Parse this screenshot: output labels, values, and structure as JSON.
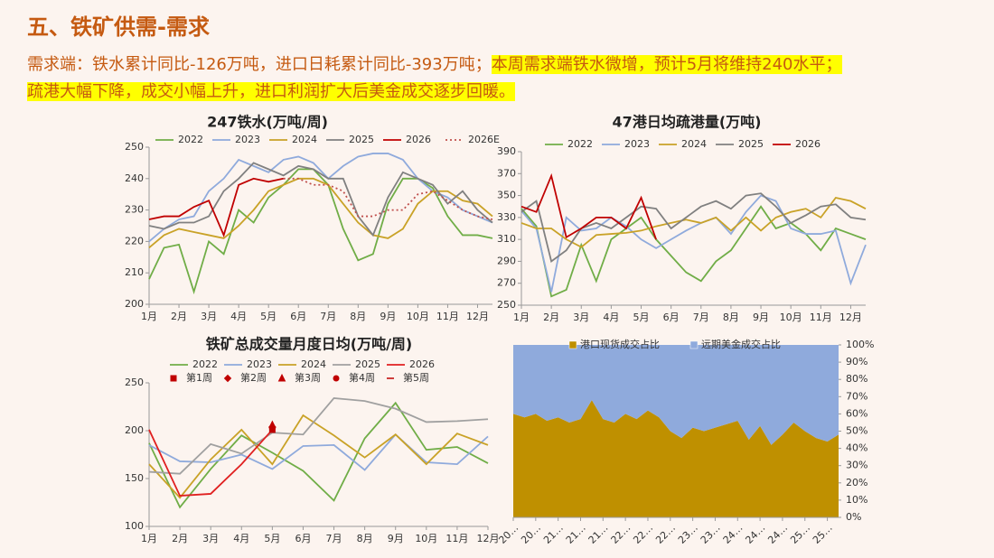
{
  "header": {
    "title": "五、铁矿供需-需求"
  },
  "description": [
    {
      "text": "需求端：铁水累计同比-126万吨，进口日耗累计同比-393万吨；",
      "highlight": false
    },
    {
      "text": "本周需求端铁水微增，预计5月将维持240水平；",
      "highlight": true
    },
    {
      "text": "疏港大幅下降，成交小幅上升，进口利润扩大后美金成交逐步回暖。",
      "highlight": true
    }
  ],
  "charts": [
    {
      "type": "line",
      "title": "247铁水(万吨/周)",
      "categories": [
        "1月",
        null,
        "2月",
        null,
        "3月",
        null,
        "4月",
        null,
        "5月",
        null,
        "6月",
        null,
        "7月",
        null,
        "8月",
        null,
        "9月",
        null,
        "10月",
        null,
        "11月",
        null,
        "12月",
        null
      ],
      "ylim": [
        200,
        250
      ],
      "yticks": [
        200,
        210,
        220,
        230,
        240,
        250
      ],
      "series": [
        {
          "name": "2022",
          "color": "#70ad47",
          "values": [
            208,
            218,
            219,
            204,
            220,
            216,
            230,
            226,
            234,
            238,
            243,
            243,
            238,
            224,
            214,
            216,
            232,
            240,
            240,
            237,
            228,
            222,
            222,
            221
          ]
        },
        {
          "name": "2023",
          "color": "#8faadc",
          "values": [
            220,
            224,
            227,
            228,
            236,
            240,
            246,
            244,
            242,
            246,
            247,
            245,
            240,
            244,
            247,
            248,
            248,
            246,
            240,
            236,
            234,
            230,
            228,
            226
          ]
        },
        {
          "name": "2024",
          "color": "#c9a227",
          "values": [
            218,
            222,
            224,
            223,
            222,
            221,
            225,
            230,
            236,
            238,
            240,
            240,
            238,
            232,
            226,
            222,
            221,
            224,
            232,
            236,
            236,
            233,
            232,
            228
          ]
        },
        {
          "name": "2025",
          "color": "#808080",
          "values": [
            225,
            224,
            226,
            226,
            228,
            236,
            240,
            245,
            243,
            241,
            244,
            243,
            240,
            240,
            228,
            222,
            234,
            242,
            240,
            238,
            232,
            236,
            230,
            226
          ]
        },
        {
          "name": "2026",
          "color": "#c00000",
          "values": [
            227,
            228,
            228,
            231,
            233,
            222,
            238,
            240,
            239,
            240,
            null,
            null,
            null,
            null,
            null,
            null,
            null,
            null,
            null,
            null,
            null,
            null,
            null,
            null
          ]
        },
        {
          "name": "2026E",
          "color": "#c0504d",
          "line_style": "dotted",
          "values": [
            null,
            null,
            null,
            null,
            null,
            null,
            null,
            null,
            null,
            240,
            240,
            238,
            238,
            236,
            228,
            228,
            230,
            230,
            235,
            236,
            233,
            230,
            228,
            227
          ]
        }
      ]
    },
    {
      "type": "line",
      "title": "47港日均疏港量(万吨)",
      "categories": [
        "1月",
        null,
        "2月",
        null,
        "3月",
        null,
        "4月",
        null,
        "5月",
        null,
        "6月",
        null,
        "7月",
        null,
        "8月",
        null,
        "9月",
        null,
        "10月",
        null,
        "11月",
        null,
        "12月",
        null
      ],
      "ylim": [
        250,
        390
      ],
      "yticks": [
        250,
        270,
        290,
        310,
        330,
        350,
        370,
        390
      ],
      "series": [
        {
          "name": "2022",
          "color": "#70ad47",
          "values": [
            338,
            322,
            258,
            264,
            305,
            272,
            310,
            320,
            330,
            310,
            295,
            280,
            272,
            290,
            300,
            320,
            340,
            320,
            325,
            315,
            300,
            320,
            315,
            310
          ]
        },
        {
          "name": "2023",
          "color": "#8faadc",
          "values": [
            336,
            320,
            262,
            330,
            318,
            320,
            330,
            322,
            310,
            302,
            310,
            318,
            325,
            330,
            315,
            335,
            350,
            345,
            320,
            315,
            315,
            318,
            270,
            305
          ]
        },
        {
          "name": "2024",
          "color": "#c9a227",
          "values": [
            325,
            320,
            320,
            310,
            303,
            314,
            315,
            316,
            318,
            322,
            325,
            328,
            325,
            330,
            318,
            330,
            318,
            330,
            335,
            338,
            330,
            348,
            345,
            338
          ]
        },
        {
          "name": "2025",
          "color": "#808080",
          "values": [
            335,
            345,
            290,
            300,
            320,
            325,
            320,
            330,
            340,
            338,
            320,
            330,
            340,
            345,
            338,
            350,
            352,
            340,
            325,
            332,
            340,
            342,
            330,
            328
          ]
        },
        {
          "name": "2026",
          "color": "#c00000",
          "values": [
            340,
            335,
            368,
            312,
            320,
            330,
            330,
            320,
            348,
            310,
            null,
            null,
            null,
            null,
            null,
            null,
            null,
            null,
            null,
            null,
            null,
            null,
            null,
            null
          ]
        }
      ]
    },
    {
      "type": "line",
      "title": "铁矿总成交量月度日均(万吨/周)",
      "categories": [
        "1月",
        "2月",
        "3月",
        "4月",
        "5月",
        "6月",
        "7月",
        "8月",
        "9月",
        "10月",
        "11月",
        "12月"
      ],
      "ylim": [
        100,
        250
      ],
      "yticks": [
        100,
        150,
        200,
        250
      ],
      "series": [
        {
          "name": "2022",
          "color": "#70ad47",
          "values": [
            187,
            120,
            160,
            195,
            177,
            158,
            127,
            192,
            229,
            180,
            183,
            166
          ]
        },
        {
          "name": "2023",
          "color": "#8faadc",
          "values": [
            185,
            168,
            167,
            175,
            160,
            184,
            185,
            159,
            196,
            167,
            165,
            194
          ]
        },
        {
          "name": "2024",
          "color": "#c9a227",
          "values": [
            165,
            130,
            170,
            201,
            165,
            216,
            195,
            172,
            196,
            165,
            197,
            185
          ]
        },
        {
          "name": "2025",
          "color": "#a0a0a0",
          "values": [
            157,
            155,
            186,
            176,
            198,
            196,
            234,
            231,
            223,
            209,
            210,
            212
          ]
        },
        {
          "name": "2026",
          "color": "#e02020",
          "values": [
            201,
            132,
            134,
            165,
            201,
            null,
            null,
            null,
            null,
            null,
            null,
            null
          ]
        }
      ],
      "markers": [
        {
          "name": "第1周",
          "marker": "square",
          "color": "#c00000",
          "values": [
            null,
            null,
            null,
            null,
            201,
            null,
            null,
            null,
            null,
            null,
            null,
            null
          ]
        },
        {
          "name": "第2周",
          "marker": "diamond",
          "color": "#c00000",
          "values": [
            null,
            null,
            null,
            null,
            204,
            null,
            null,
            null,
            null,
            null,
            null,
            null
          ]
        },
        {
          "name": "第3周",
          "marker": "triangle",
          "color": "#c00000",
          "values": [
            null,
            null,
            null,
            null,
            206,
            null,
            null,
            null,
            null,
            null,
            null,
            null
          ]
        },
        {
          "name": "第4周",
          "marker": "circle",
          "color": "#c00000",
          "values": [
            null,
            null,
            null,
            null,
            202,
            null,
            null,
            null,
            null,
            null,
            null,
            null
          ]
        },
        {
          "name": "第5周",
          "marker": "dash",
          "color": "#c00000",
          "values": [
            null,
            null,
            null,
            null,
            null,
            null,
            null,
            null,
            null,
            null,
            null,
            null
          ]
        }
      ]
    },
    {
      "type": "stacked_area",
      "categories": [
        "20…",
        null,
        "20…",
        null,
        "21…",
        null,
        "21…",
        null,
        "21…",
        null,
        "22…",
        null,
        "22…",
        null,
        "22…",
        null,
        "23…",
        null,
        "23…",
        null,
        "24…",
        null,
        "24…",
        null,
        "24…",
        null,
        "25…",
        null,
        "25…",
        null
      ],
      "ylim": [
        0,
        100
      ],
      "yticks": [
        {
          "value": 0,
          "label": "0%"
        },
        {
          "value": 10,
          "label": "10%"
        },
        {
          "value": 20,
          "label": "20%"
        },
        {
          "value": 30,
          "label": "30%"
        },
        {
          "value": 40,
          "label": "40%"
        },
        {
          "value": 50,
          "label": "50%"
        },
        {
          "value": 60,
          "label": "60%"
        },
        {
          "value": 70,
          "label": "70%"
        },
        {
          "value": 80,
          "label": "80%"
        },
        {
          "value": 90,
          "label": "90%"
        },
        {
          "value": 100,
          "label": "100%"
        }
      ],
      "series": [
        {
          "name": "港口现货成交占比",
          "color": "#bf9000",
          "values": [
            60,
            58,
            60,
            56,
            58,
            55,
            57,
            68,
            57,
            55,
            60,
            57,
            62,
            58,
            50,
            46,
            52,
            50,
            52,
            54,
            56,
            45,
            53,
            42,
            48,
            55,
            50,
            46,
            44,
            48
          ]
        },
        {
          "name": "远期美金成交占比",
          "color": "#8faadc",
          "values": [
            40,
            42,
            40,
            44,
            42,
            45,
            43,
            32,
            43,
            45,
            40,
            43,
            38,
            42,
            50,
            54,
            48,
            50,
            48,
            46,
            44,
            55,
            47,
            58,
            52,
            45,
            50,
            54,
            56,
            52
          ]
        }
      ]
    }
  ]
}
